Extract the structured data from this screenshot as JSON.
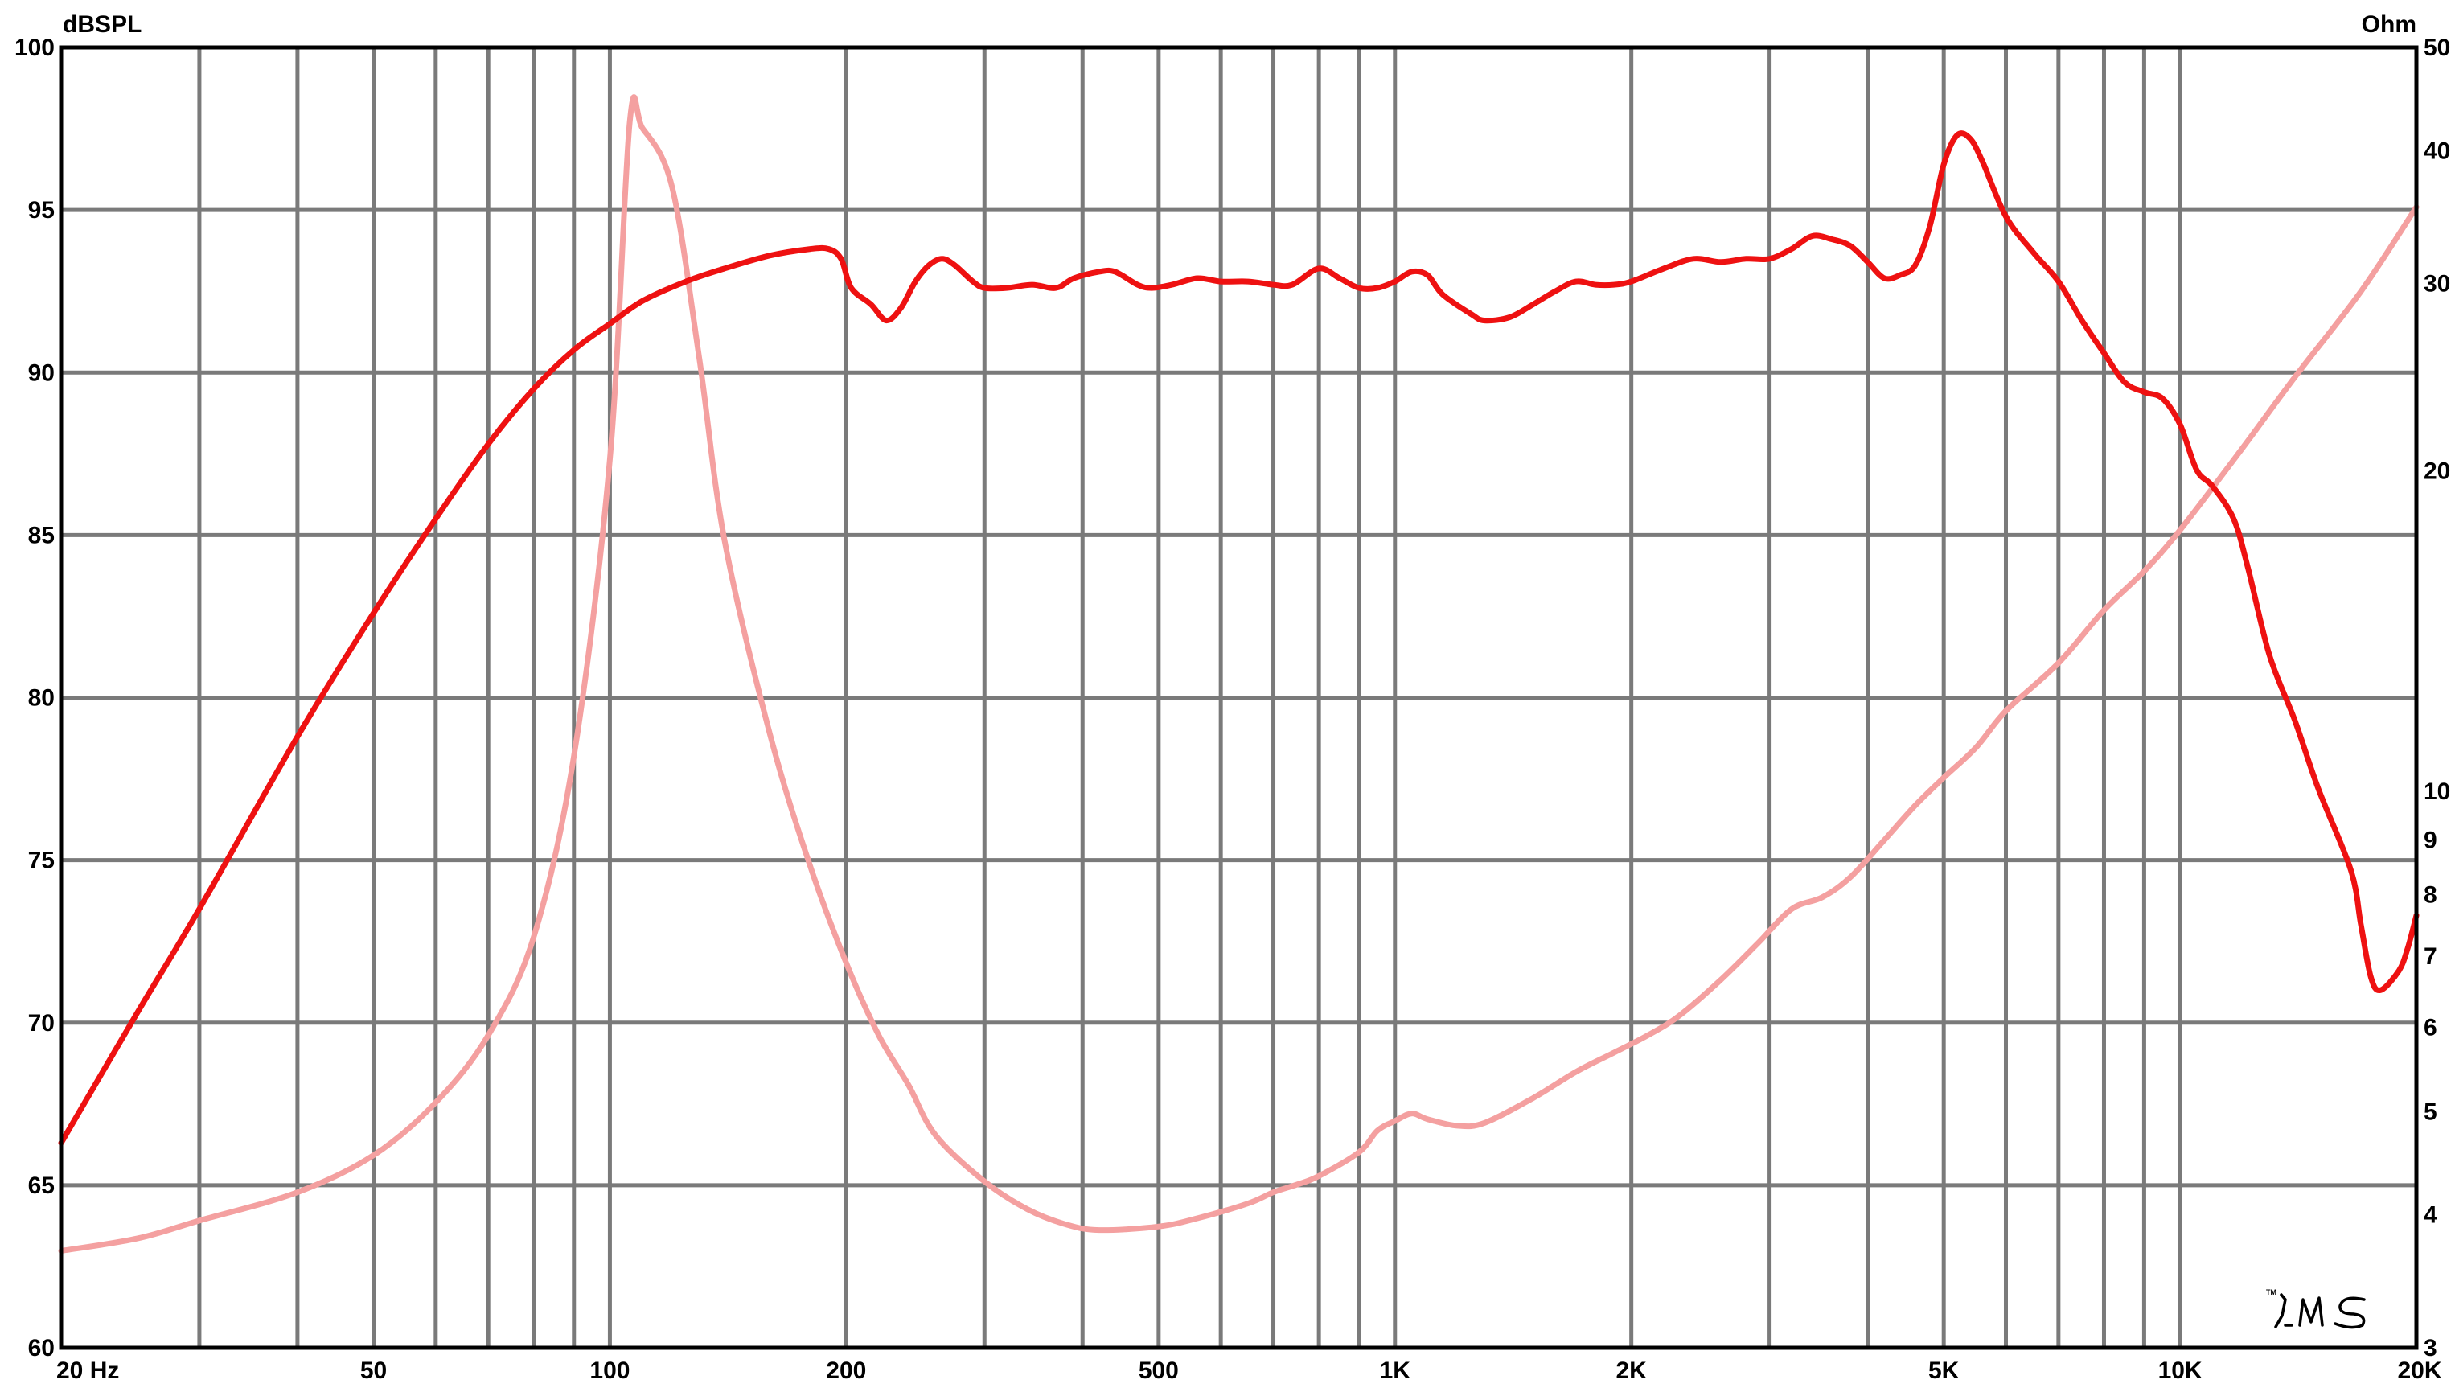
{
  "chart_data": {
    "type": "line",
    "title": "",
    "left_axis_label": "dBSPL",
    "right_axis_label": "Ohm",
    "x_scale": "log",
    "x_range": [
      20,
      20000
    ],
    "x_tick_labels": [
      {
        "value": 20,
        "label": "20  Hz"
      },
      {
        "value": 50,
        "label": "50"
      },
      {
        "value": 100,
        "label": "100"
      },
      {
        "value": 200,
        "label": "200"
      },
      {
        "value": 500,
        "label": "500"
      },
      {
        "value": 1000,
        "label": "1K"
      },
      {
        "value": 2000,
        "label": "2K"
      },
      {
        "value": 5000,
        "label": "5K"
      },
      {
        "value": 10000,
        "label": "10K"
      },
      {
        "value": 20000,
        "label": "20K"
      }
    ],
    "x_gridlines": [
      20,
      30,
      40,
      50,
      60,
      70,
      80,
      90,
      100,
      200,
      300,
      400,
      500,
      600,
      700,
      800,
      900,
      1000,
      2000,
      3000,
      4000,
      5000,
      6000,
      7000,
      8000,
      9000,
      10000,
      20000
    ],
    "left_y_range": [
      60,
      100
    ],
    "left_y_ticks": [
      60,
      65,
      70,
      75,
      80,
      85,
      90,
      95,
      100
    ],
    "right_y_scale": "log",
    "right_y_range": [
      3,
      50
    ],
    "right_y_ticks": [
      3,
      4,
      5,
      6,
      7,
      8,
      9,
      10,
      20,
      30,
      40,
      50
    ],
    "grid": true,
    "series": [
      {
        "axis": "left",
        "color": "#ee1111",
        "points": [
          [
            20,
            66.3
          ],
          [
            25,
            70.3
          ],
          [
            30,
            73.5
          ],
          [
            40,
            78.8
          ],
          [
            50,
            82.6
          ],
          [
            60,
            85.5
          ],
          [
            70,
            87.8
          ],
          [
            80,
            89.5
          ],
          [
            90,
            90.7
          ],
          [
            100,
            91.5
          ],
          [
            110,
            92.2
          ],
          [
            125,
            92.8
          ],
          [
            140,
            93.2
          ],
          [
            160,
            93.6
          ],
          [
            180,
            93.8
          ],
          [
            190,
            93.8
          ],
          [
            197,
            93.5
          ],
          [
            203,
            92.6
          ],
          [
            215,
            92.1
          ],
          [
            225,
            91.6
          ],
          [
            235,
            92.0
          ],
          [
            245,
            92.8
          ],
          [
            255,
            93.3
          ],
          [
            265,
            93.5
          ],
          [
            275,
            93.3
          ],
          [
            290,
            92.8
          ],
          [
            300,
            92.6
          ],
          [
            320,
            92.6
          ],
          [
            345,
            92.7
          ],
          [
            370,
            92.6
          ],
          [
            390,
            92.9
          ],
          [
            420,
            93.1
          ],
          [
            440,
            93.1
          ],
          [
            470,
            92.7
          ],
          [
            490,
            92.6
          ],
          [
            520,
            92.7
          ],
          [
            560,
            92.9
          ],
          [
            600,
            92.8
          ],
          [
            650,
            92.8
          ],
          [
            700,
            92.7
          ],
          [
            740,
            92.7
          ],
          [
            800,
            93.2
          ],
          [
            850,
            92.9
          ],
          [
            900,
            92.6
          ],
          [
            950,
            92.6
          ],
          [
            1000,
            92.8
          ],
          [
            1050,
            93.1
          ],
          [
            1100,
            93.0
          ],
          [
            1150,
            92.4
          ],
          [
            1250,
            91.8
          ],
          [
            1300,
            91.6
          ],
          [
            1400,
            91.7
          ],
          [
            1500,
            92.1
          ],
          [
            1600,
            92.5
          ],
          [
            1700,
            92.8
          ],
          [
            1800,
            92.7
          ],
          [
            1900,
            92.7
          ],
          [
            2000,
            92.8
          ],
          [
            2200,
            93.2
          ],
          [
            2400,
            93.5
          ],
          [
            2600,
            93.4
          ],
          [
            2800,
            93.5
          ],
          [
            3000,
            93.5
          ],
          [
            3200,
            93.8
          ],
          [
            3400,
            94.2
          ],
          [
            3600,
            94.1
          ],
          [
            3800,
            93.9
          ],
          [
            4000,
            93.4
          ],
          [
            4200,
            92.9
          ],
          [
            4400,
            93.0
          ],
          [
            4600,
            93.3
          ],
          [
            4800,
            94.5
          ],
          [
            5000,
            96.4
          ],
          [
            5200,
            97.3
          ],
          [
            5400,
            97.2
          ],
          [
            5600,
            96.5
          ],
          [
            6000,
            94.8
          ],
          [
            6500,
            93.7
          ],
          [
            7000,
            92.8
          ],
          [
            7500,
            91.6
          ],
          [
            8000,
            90.6
          ],
          [
            8500,
            89.7
          ],
          [
            9000,
            89.4
          ],
          [
            9500,
            89.2
          ],
          [
            10000,
            88.4
          ],
          [
            10500,
            87.0
          ],
          [
            11000,
            86.5
          ],
          [
            11700,
            85.5
          ],
          [
            12200,
            84.0
          ],
          [
            13000,
            81.3
          ],
          [
            14000,
            79.3
          ],
          [
            15000,
            77.2
          ],
          [
            16500,
            74.7
          ],
          [
            17000,
            73.0
          ],
          [
            17500,
            71.4
          ],
          [
            18000,
            71.0
          ],
          [
            19000,
            71.6
          ],
          [
            19500,
            72.3
          ],
          [
            20000,
            73.3
          ]
        ]
      },
      {
        "axis": "right",
        "color": "#f4a0a0",
        "points": [
          [
            20,
            3.7
          ],
          [
            25,
            3.8
          ],
          [
            30,
            3.95
          ],
          [
            40,
            4.2
          ],
          [
            50,
            4.55
          ],
          [
            60,
            5.1
          ],
          [
            70,
            5.9
          ],
          [
            80,
            7.3
          ],
          [
            90,
            10.8
          ],
          [
            100,
            20.5
          ],
          [
            106,
            42.5
          ],
          [
            110,
            42.0
          ],
          [
            120,
            37.0
          ],
          [
            130,
            25.5
          ],
          [
            140,
            17.2
          ],
          [
            160,
            11.3
          ],
          [
            180,
            8.5
          ],
          [
            200,
            6.9
          ],
          [
            220,
            5.9
          ],
          [
            240,
            5.3
          ],
          [
            260,
            4.75
          ],
          [
            300,
            4.3
          ],
          [
            340,
            4.05
          ],
          [
            380,
            3.92
          ],
          [
            420,
            3.87
          ],
          [
            500,
            3.9
          ],
          [
            560,
            3.97
          ],
          [
            650,
            4.1
          ],
          [
            700,
            4.2
          ],
          [
            750,
            4.27
          ],
          [
            800,
            4.35
          ],
          [
            900,
            4.58
          ],
          [
            950,
            4.8
          ],
          [
            1000,
            4.9
          ],
          [
            1050,
            4.98
          ],
          [
            1100,
            4.92
          ],
          [
            1200,
            4.85
          ],
          [
            1300,
            4.88
          ],
          [
            1500,
            5.15
          ],
          [
            1700,
            5.45
          ],
          [
            1900,
            5.68
          ],
          [
            2100,
            5.9
          ],
          [
            2300,
            6.15
          ],
          [
            2600,
            6.65
          ],
          [
            2900,
            7.2
          ],
          [
            3200,
            7.75
          ],
          [
            3500,
            7.95
          ],
          [
            3800,
            8.3
          ],
          [
            4200,
            9.0
          ],
          [
            4600,
            9.7
          ],
          [
            5000,
            10.3
          ],
          [
            5500,
            11.0
          ],
          [
            6000,
            11.9
          ],
          [
            7000,
            13.2
          ],
          [
            8000,
            14.8
          ],
          [
            9000,
            16.1
          ],
          [
            10000,
            17.6
          ],
          [
            12000,
            21.0
          ],
          [
            14000,
            24.5
          ],
          [
            17000,
            29.5
          ],
          [
            20000,
            35.4
          ]
        ]
      }
    ]
  },
  "logo": "LMS"
}
